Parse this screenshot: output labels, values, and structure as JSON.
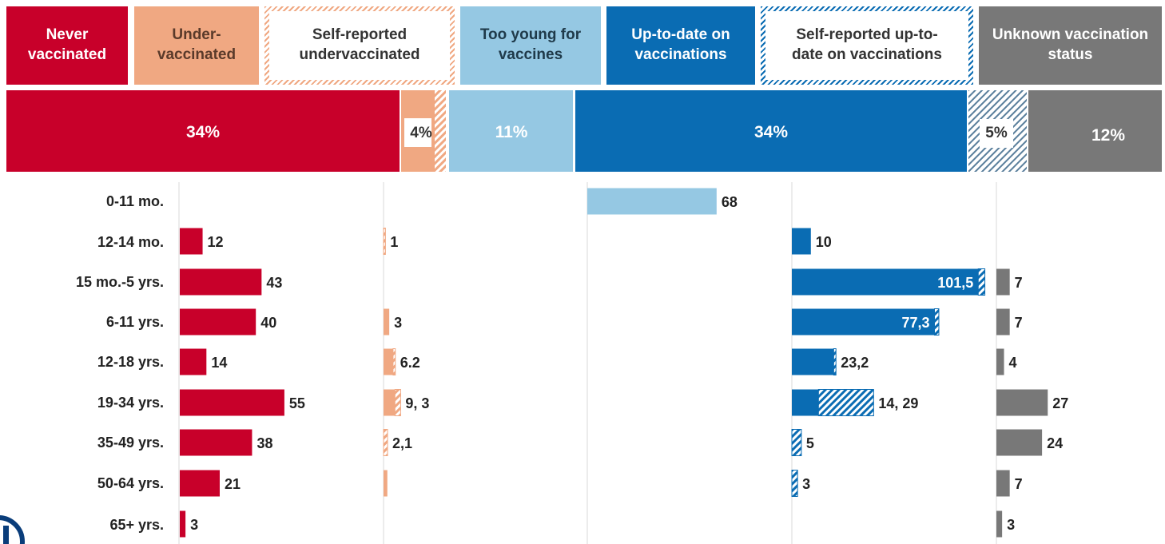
{
  "colors": {
    "never": "#c8002a",
    "under": "#f0a882",
    "young": "#95c8e3",
    "uptodate": "#0a6cb3",
    "unknown": "#787878",
    "divider": "#d8d8d8"
  },
  "legend": [
    {
      "key": "never",
      "label": "Never vaccinated",
      "style": "solid-dark"
    },
    {
      "key": "under",
      "label": "Under-vaccinated",
      "style": "solid-light"
    },
    {
      "key": "self_under",
      "label": "Self-reported undervaccinated",
      "style": "hatch-under"
    },
    {
      "key": "young",
      "label": "Too young for vaccines",
      "style": "solid-young"
    },
    {
      "key": "uptodate",
      "label": "Up-to-date on vaccinations",
      "style": "solid-uptodate"
    },
    {
      "key": "self_uptodate",
      "label": "Self-reported up-to-date on vaccinations",
      "style": "hatch-uptodate"
    },
    {
      "key": "unknown",
      "label": "Unknown vaccination status",
      "style": "solid-unknown"
    }
  ],
  "chart_data": {
    "type": "bar",
    "title": "",
    "summary_bar": [
      {
        "category": "Never vaccinated",
        "label": "34%"
      },
      {
        "category": "Under-vaccinated",
        "label": "4%"
      },
      {
        "category": "Too young for vaccines",
        "label": "11%"
      },
      {
        "category": "Up-to-date on vaccinations",
        "label": "34%"
      },
      {
        "category": "Self-reported up-to-date on vaccinations",
        "label": "5%"
      },
      {
        "category": "Unknown vaccination status",
        "label": "12%"
      }
    ],
    "categories": [
      "0-11 mo.",
      "12-14 mo.",
      "15 mo.-5 yrs.",
      "6-11 yrs.",
      "12-18 yrs.",
      "19-34 yrs.",
      "35-49 yrs.",
      "50-64 yrs.",
      "65+ yrs."
    ],
    "panels": [
      {
        "name": "Never vaccinated",
        "values": [
          0,
          12,
          43,
          40,
          14,
          55,
          38,
          21,
          3
        ],
        "labels": [
          "",
          "12",
          "43",
          "40",
          "14",
          "55",
          "38",
          "21",
          "3"
        ]
      },
      {
        "name": "Under-vaccinated",
        "values": [
          0,
          0,
          0,
          3,
          5,
          6,
          0,
          2,
          0
        ],
        "self_reported": [
          0,
          1,
          0,
          0,
          1.2,
          3,
          2.1,
          0,
          0
        ],
        "labels": [
          "",
          "1",
          "",
          "3",
          "6.2",
          "9, 3",
          "2,1",
          "",
          ""
        ]
      },
      {
        "name": "Too young for vaccines",
        "values": [
          68,
          0,
          0,
          0,
          0,
          0,
          0,
          0,
          0
        ],
        "labels": [
          "68",
          "",
          "",
          "",
          "",
          "",
          "",
          "",
          ""
        ]
      },
      {
        "name": "Up-to-date on vaccinations",
        "values": [
          0,
          10,
          98,
          75,
          22,
          14,
          0,
          0,
          0
        ],
        "self_reported": [
          0,
          0,
          3.5,
          2.3,
          1.2,
          29,
          5,
          3,
          0
        ],
        "labels": [
          "",
          "10",
          "101,5",
          "77,3",
          "23,2",
          "14, 29",
          "5",
          "3",
          ""
        ]
      },
      {
        "name": "Unknown vaccination status",
        "values": [
          0,
          0,
          7,
          7,
          4,
          27,
          24,
          7,
          3
        ],
        "labels": [
          "",
          "",
          "7",
          "7",
          "4",
          "27",
          "24",
          "7",
          "3"
        ]
      }
    ]
  }
}
